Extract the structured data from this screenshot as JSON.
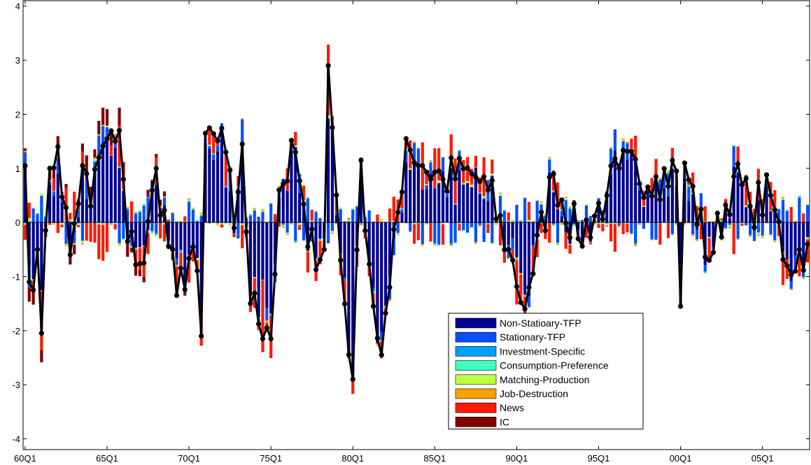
{
  "chart_data": {
    "type": "bar",
    "subtype": "stacked-bar-with-line",
    "title": "",
    "xlabel": "",
    "ylabel": "",
    "ylim": [
      -4.2,
      4.1
    ],
    "yticks": [
      -4,
      -3,
      -2,
      -1,
      0,
      1,
      2,
      3,
      4
    ],
    "xticks": [
      "60Q1",
      "65Q1",
      "70Q1",
      "75Q1",
      "80Q1",
      "85Q1",
      "90Q1",
      "95Q1",
      "00Q1",
      "05Q1"
    ],
    "x_start": "1960Q1",
    "x_end": "2007Q4",
    "grid": false,
    "legend_position": "lower-center",
    "legend": [
      {
        "name": "Non-Statioary-TFP",
        "color": "#00008f"
      },
      {
        "name": "Stationary-TFP",
        "color": "#0050ff"
      },
      {
        "name": "Investment-Specific",
        "color": "#00a0ff"
      },
      {
        "name": "Consumption-Preference",
        "color": "#40ffbf"
      },
      {
        "name": "Matching-Production",
        "color": "#c0ff40"
      },
      {
        "name": "Job-Destruction",
        "color": "#ffa000"
      },
      {
        "name": "News",
        "color": "#ff1a00"
      },
      {
        "name": "IC",
        "color": "#800000"
      }
    ],
    "line_series_color": "#000000",
    "line_key_points": [
      [
        "1960Q1",
        1.05
      ],
      [
        "1960Q2",
        -1.1
      ],
      [
        "1960Q4",
        -0.5
      ],
      [
        "1961Q1",
        -2.05
      ],
      [
        "1961Q3",
        1.0
      ],
      [
        "1962Q1",
        1.4
      ],
      [
        "1962Q4",
        -0.6
      ],
      [
        "1963Q3",
        1.05
      ],
      [
        "1964Q1",
        0.3
      ],
      [
        "1964Q3",
        1.2
      ],
      [
        "1965Q1",
        1.55
      ],
      [
        "1965Q3",
        1.5
      ],
      [
        "1965Q4",
        1.7
      ],
      [
        "1966Q2",
        -0.35
      ],
      [
        "1967Q2",
        -0.75
      ],
      [
        "1968Q1",
        1.0
      ],
      [
        "1969Q2",
        -1.35
      ],
      [
        "1970Q2",
        -0.45
      ],
      [
        "1970Q4",
        -2.1
      ],
      [
        "1971Q1",
        1.65
      ],
      [
        "1972Q2",
        1.3
      ],
      [
        "1972Q4",
        -0.1
      ],
      [
        "1973Q2",
        1.45
      ],
      [
        "1973Q4",
        -1.5
      ],
      [
        "1974Q4",
        -1.95
      ],
      [
        "1975Q1",
        -2.15
      ],
      [
        "1975Q3",
        0.6
      ],
      [
        "1976Q3",
        1.3
      ],
      [
        "1977Q2",
        -0.45
      ],
      [
        "1978Q2",
        -0.5
      ],
      [
        "1978Q3",
        2.9
      ],
      [
        "1979Q2",
        -0.7
      ],
      [
        "1980Q1",
        -2.9
      ],
      [
        "1980Q3",
        1.15
      ],
      [
        "1981Q2",
        -1.55
      ],
      [
        "1981Q4",
        -2.45
      ],
      [
        "1982Q2",
        -1.2
      ],
      [
        "1983Q2",
        1.55
      ],
      [
        "1984Q2",
        1.05
      ],
      [
        "1985Q3",
        0.8
      ],
      [
        "1987Q2",
        0.9
      ],
      [
        "1988Q2",
        0.6
      ],
      [
        "1989Q3",
        -0.5
      ],
      [
        "1990Q3",
        -1.6
      ],
      [
        "1990Q4",
        -1.2
      ],
      [
        "1992Q2",
        0.9
      ],
      [
        "1993Q4",
        -0.3
      ],
      [
        "1995Q3",
        0.5
      ],
      [
        "1996Q2",
        1.0
      ],
      [
        "1998Q3",
        0.85
      ],
      [
        "1999Q4",
        0.95
      ],
      [
        "2000Q1",
        -1.55
      ],
      [
        "2000Q2",
        1.1
      ],
      [
        "2001Q4",
        -0.7
      ],
      [
        "2003Q2",
        0.85
      ],
      [
        "2004Q2",
        0.3
      ],
      [
        "2005Q3",
        0.5
      ],
      [
        "2006Q3",
        -0.8
      ],
      [
        "2007Q4",
        -0.4
      ]
    ]
  }
}
